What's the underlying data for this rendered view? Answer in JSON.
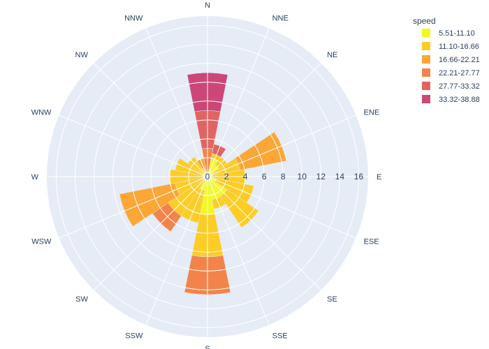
{
  "chart_data": {
    "type": "barpolar",
    "directions": [
      "N",
      "NNE",
      "NE",
      "ENE",
      "E",
      "ESE",
      "SE",
      "SSE",
      "S",
      "SSW",
      "SW",
      "WSW",
      "W",
      "WNW",
      "NW",
      "NNW"
    ],
    "radial_axis": {
      "range": [
        0,
        17
      ],
      "tick_values": [
        0,
        2,
        4,
        6,
        8,
        10,
        12,
        14,
        16
      ],
      "tick_labels": [
        "0",
        "2",
        "4",
        "6",
        "8",
        "10",
        "12",
        "14",
        "16"
      ]
    },
    "legend": {
      "title": "speed",
      "position": "top-right"
    },
    "series": [
      {
        "name": "5.51-11.10",
        "color": "#f0f921",
        "values": [
          0.5,
          2.0,
          1.5,
          0.5,
          0.5,
          1.0,
          2.5,
          2.5,
          4.0,
          1.5,
          0.5,
          0.5,
          0.5,
          0.5,
          0.5,
          0.5
        ]
      },
      {
        "name": "11.10-16.66",
        "color": "#fccd25",
        "values": [
          0.0,
          0.5,
          1.0,
          3.0,
          3.5,
          4.0,
          4.0,
          1.0,
          4.5,
          3.5,
          4.5,
          3.0,
          3.5,
          3.0,
          2.0,
          0.5
        ]
      },
      {
        "name": "16.66-22.21",
        "color": "#fca636",
        "values": [
          0.0,
          0.0,
          0.0,
          5.0,
          0.0,
          0.0,
          0.0,
          0.0,
          0.0,
          0.0,
          0.0,
          6.0,
          0.0,
          0.0,
          0.0,
          1.0
        ]
      },
      {
        "name": "22.21-27.77",
        "color": "#f2844b",
        "values": [
          2.5,
          0.0,
          0.0,
          0.0,
          0.0,
          0.0,
          0.0,
          0.0,
          4.0,
          0.0,
          2.0,
          0.0,
          0.0,
          0.0,
          0.0,
          0.0
        ]
      },
      {
        "name": "27.77-33.32",
        "color": "#e16462",
        "values": [
          4.0,
          1.0,
          0.0,
          0.0,
          0.0,
          0.0,
          0.0,
          0.0,
          0.0,
          0.0,
          0.0,
          0.0,
          0.0,
          0.0,
          0.0,
          0.0
        ]
      },
      {
        "name": "33.32-38.88",
        "color": "#cc4778",
        "values": [
          4.0,
          0.0,
          0.0,
          0.0,
          0.0,
          0.0,
          0.0,
          0.0,
          0.0,
          0.0,
          0.0,
          0.0,
          0.0,
          0.0,
          0.0,
          0.0
        ]
      }
    ]
  }
}
